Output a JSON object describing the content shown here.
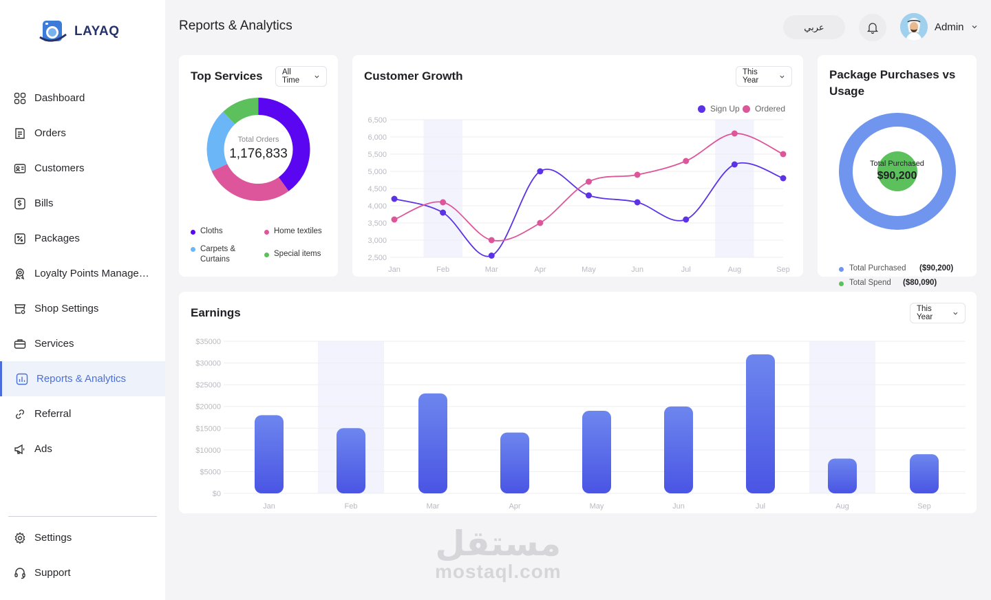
{
  "app": {
    "name": "LAYAQ"
  },
  "sidebar": {
    "items": [
      {
        "label": "Dashboard",
        "icon": "grid-icon"
      },
      {
        "label": "Orders",
        "icon": "orders-icon"
      },
      {
        "label": "Customers",
        "icon": "id-card-icon"
      },
      {
        "label": "Bills",
        "icon": "bill-icon"
      },
      {
        "label": "Packages",
        "icon": "package-icon"
      },
      {
        "label": "Loyalty Points Management",
        "icon": "badge-icon"
      },
      {
        "label": "Shop Settings",
        "icon": "shop-icon"
      },
      {
        "label": "Services",
        "icon": "briefcase-icon"
      },
      {
        "label": "Reports & Analytics",
        "icon": "chart-icon"
      },
      {
        "label": "Referral",
        "icon": "link-icon"
      },
      {
        "label": "Ads",
        "icon": "megaphone-icon"
      }
    ],
    "bottom": [
      {
        "label": "Settings",
        "icon": "gear-icon"
      },
      {
        "label": "Support",
        "icon": "headset-icon"
      }
    ]
  },
  "header": {
    "title": "Reports & Analytics",
    "language_label": "عربي",
    "user_name": "Admin"
  },
  "top_services": {
    "title": "Top Services",
    "filter": "All Time",
    "center_label": "Total Orders",
    "center_value": "1,176,833",
    "legend": [
      "Cloths",
      "Home textiles",
      "Carpets & Curtains",
      "Special items"
    ],
    "colors": [
      "#5a06f1",
      "#dd559a",
      "#6bb6f6",
      "#5cc15c"
    ]
  },
  "customer_growth": {
    "title": "Customer Growth",
    "filter": "This Year"
  },
  "package_purchases": {
    "title": "Package Purchases vs Usage",
    "center_label": "Total Purchased",
    "center_value": "$90,200",
    "legend": [
      {
        "label": "Total Purchased",
        "value": "($90,200)",
        "color": "#6f95ee"
      },
      {
        "label": "Total Spend",
        "value": "($80,090)",
        "color": "#5cc15c"
      }
    ]
  },
  "earnings": {
    "title": "Earnings",
    "filter": "This Year"
  },
  "watermark": {
    "arabic": "مستقل",
    "latin": "mostaql.com"
  },
  "chart_data": [
    {
      "type": "pie",
      "title": "Top Services",
      "categories": [
        "Cloths",
        "Home textiles",
        "Carpets & Curtains",
        "Special items"
      ],
      "values": [
        40,
        28,
        20,
        12
      ]
    },
    {
      "type": "line",
      "title": "Customer Growth",
      "categories": [
        "Jan",
        "Feb",
        "Mar",
        "Apr",
        "May",
        "Jun",
        "Jul",
        "Aug",
        "Sep"
      ],
      "series": [
        {
          "name": "Sign Up",
          "color": "#5b32e6",
          "values": [
            4200,
            3800,
            2550,
            5000,
            4300,
            4100,
            3600,
            5200,
            4800
          ]
        },
        {
          "name": "Ordered",
          "color": "#dd559a",
          "values": [
            3600,
            4100,
            3000,
            3500,
            4700,
            4900,
            5300,
            6100,
            5500
          ]
        }
      ],
      "yticks": [
        "2,500",
        "3,000",
        "3,500",
        "4,000",
        "4,500",
        "5,000",
        "5,500",
        "6,000",
        "6,500"
      ],
      "ylim": [
        2500,
        6500
      ],
      "highlight": [
        "Feb",
        "Aug"
      ]
    },
    {
      "type": "pie",
      "title": "Package Purchases vs Usage",
      "categories": [
        "Total Purchased",
        "Total Spend"
      ],
      "values": [
        90200,
        80090
      ]
    },
    {
      "type": "bar",
      "title": "Earnings",
      "categories": [
        "Jan",
        "Feb",
        "Mar",
        "Apr",
        "May",
        "Jun",
        "Jul",
        "Aug",
        "Sep"
      ],
      "values": [
        18000,
        15000,
        23000,
        14000,
        19000,
        20000,
        32000,
        8000,
        9000
      ],
      "yticks": [
        "$0",
        "$5000",
        "$10000",
        "$15000",
        "$20000",
        "$25000",
        "$30000",
        "$35000"
      ],
      "ylim": [
        0,
        35000
      ],
      "highlight": [
        "Feb",
        "Aug"
      ]
    }
  ]
}
